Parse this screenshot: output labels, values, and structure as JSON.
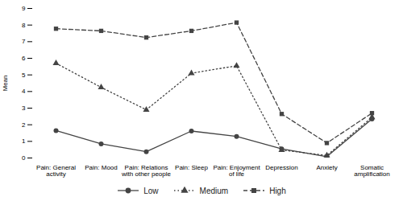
{
  "chart_data": {
    "type": "line",
    "categories": [
      "Pain: General\nactivity",
      "Pain: Mood",
      "Pain: Relations\nwith other people",
      "Pain: Sleep",
      "Pain: Enjoyment\nof life",
      "Depression",
      "Anxiety",
      "Somatic\namplification"
    ],
    "series": [
      {
        "name": "Low",
        "color": "#444444",
        "marker": "circle",
        "line_style": "solid",
        "values": [
          1.65,
          0.85,
          0.38,
          1.62,
          1.3,
          0.55,
          0.08,
          2.35
        ]
      },
      {
        "name": "Medium",
        "color": "#444444",
        "marker": "triangle",
        "line_style": "dotted",
        "values": [
          5.7,
          4.25,
          2.9,
          5.1,
          5.55,
          0.48,
          0.15,
          2.45
        ]
      },
      {
        "name": "High",
        "color": "#444444",
        "marker": "square",
        "line_style": "dashed",
        "values": [
          7.78,
          7.65,
          7.25,
          7.65,
          8.15,
          2.65,
          0.9,
          2.7
        ]
      }
    ],
    "ylabel": "Mean",
    "ylim": [
      0,
      9
    ],
    "yticks": [
      0,
      1,
      2,
      3,
      4,
      5,
      6,
      7,
      8,
      9
    ],
    "grid": false,
    "legend": "bottom"
  }
}
